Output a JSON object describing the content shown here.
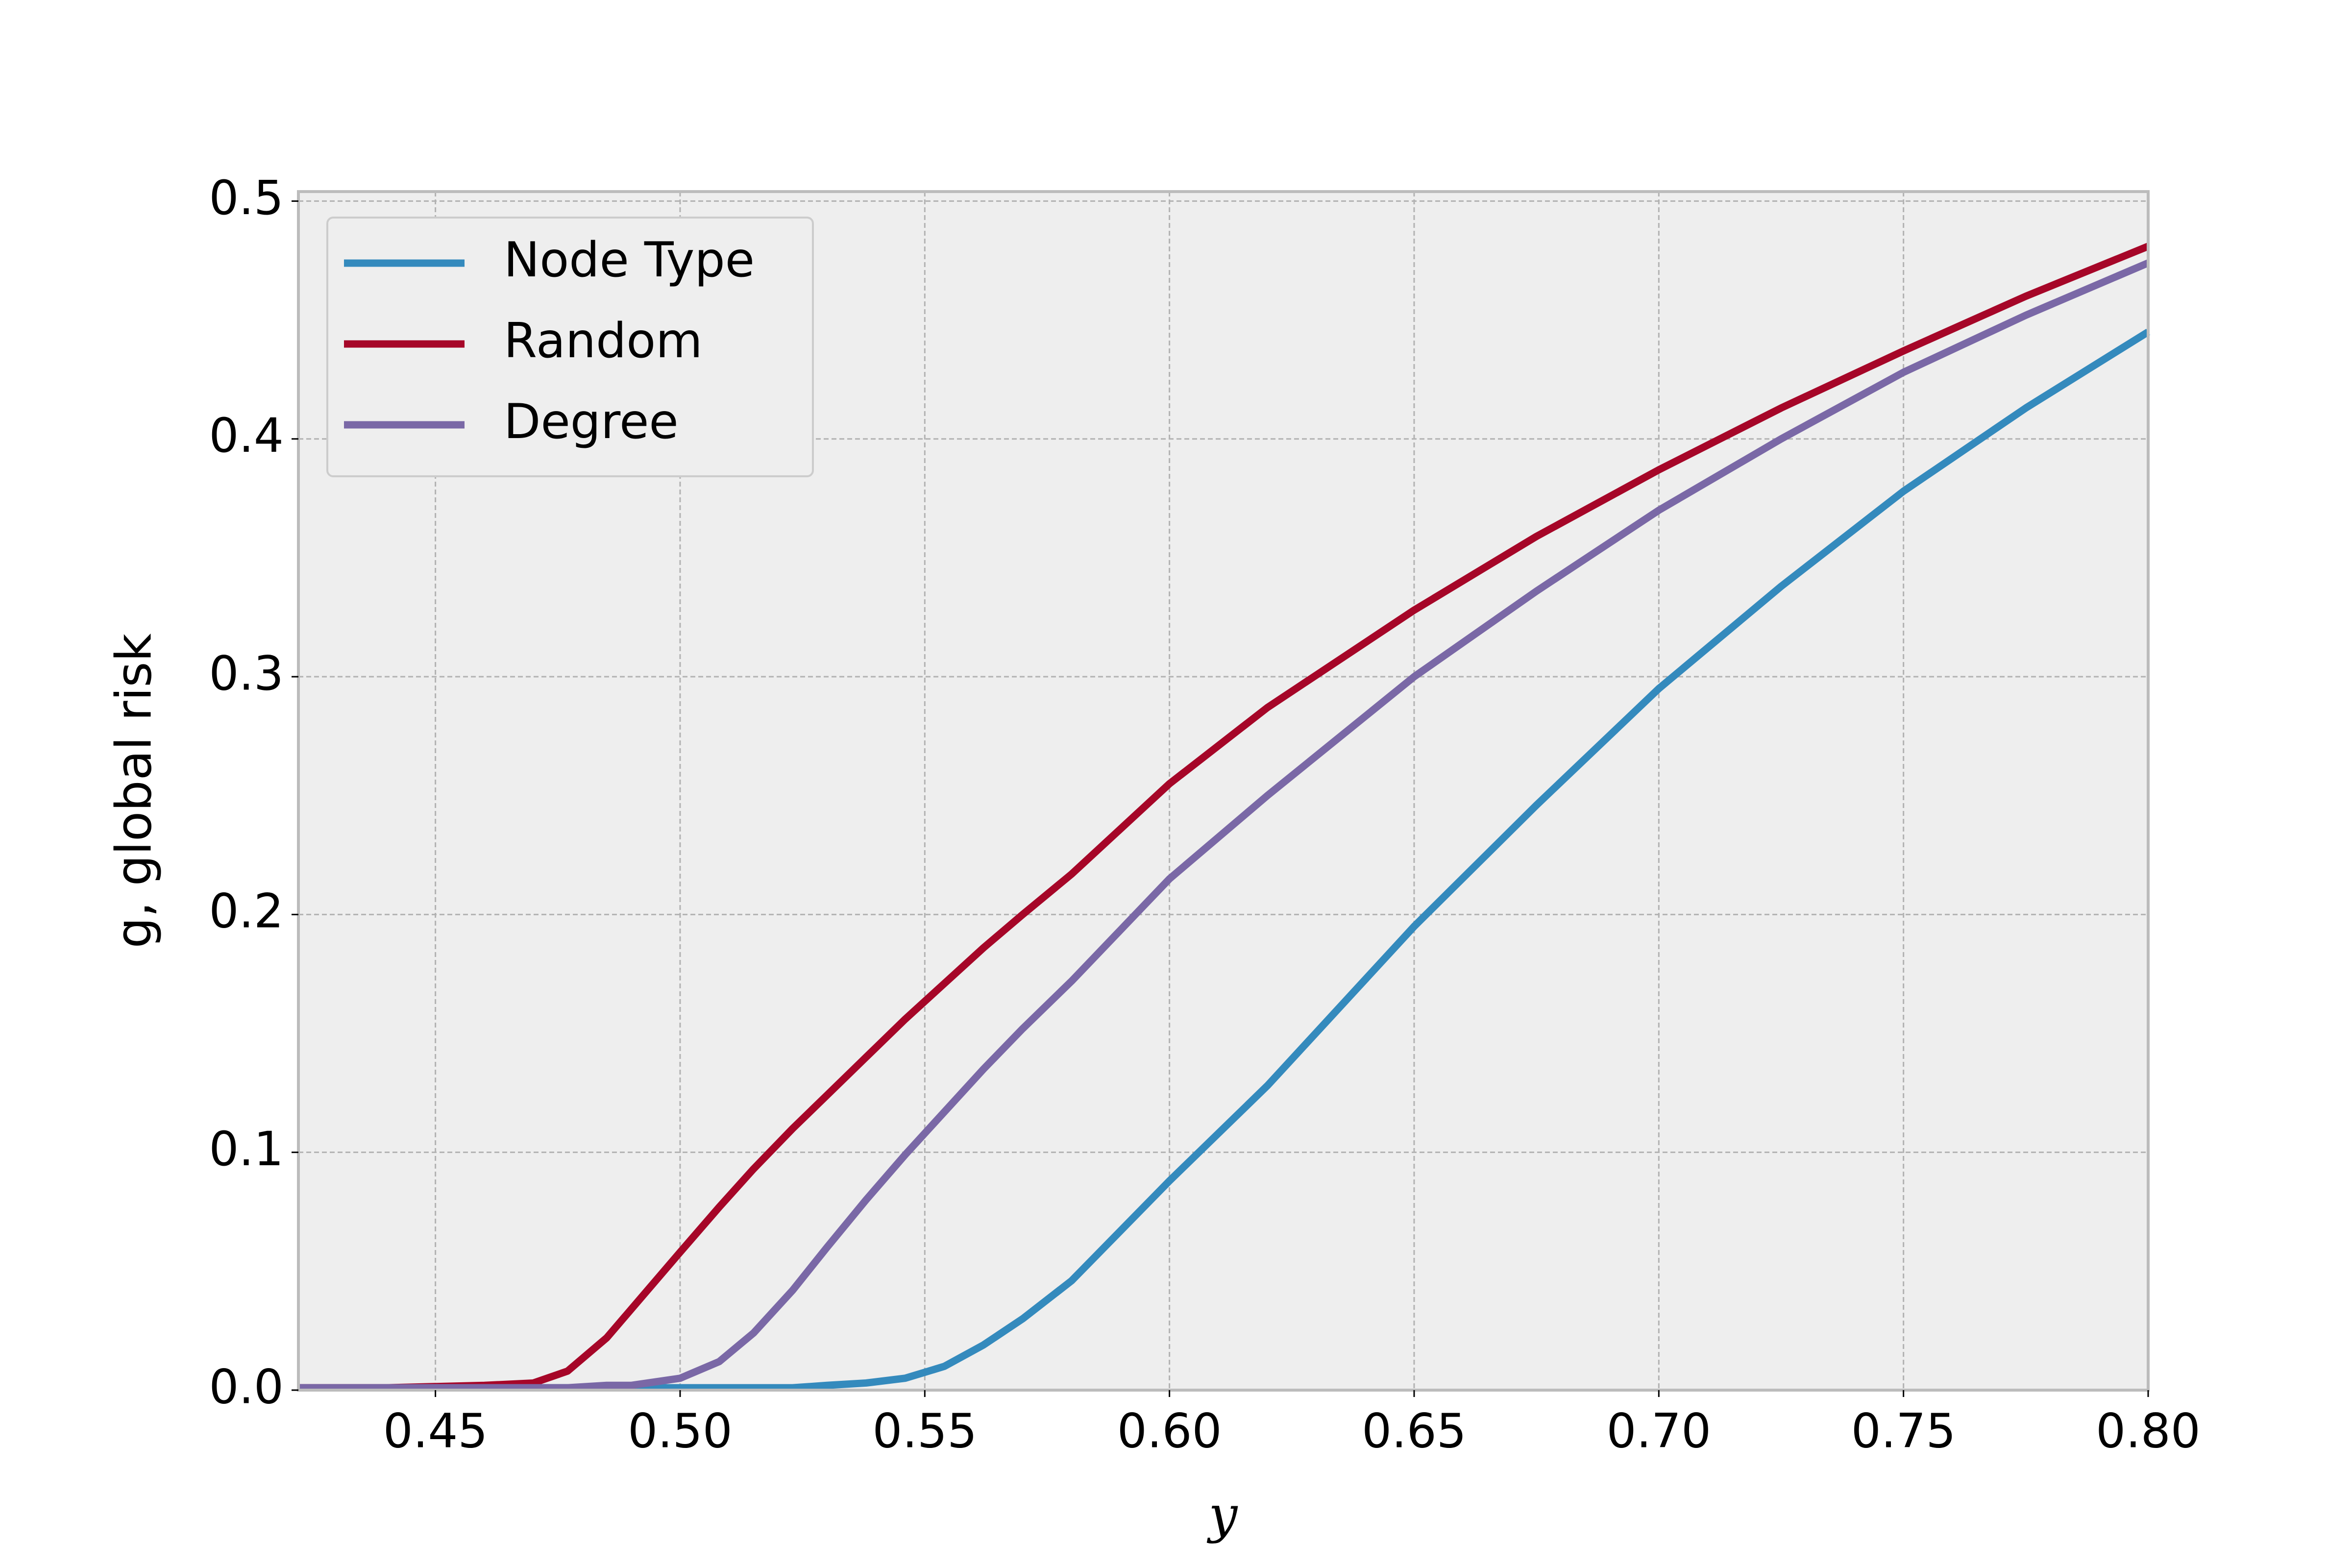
{
  "chart_data": {
    "type": "line",
    "x_label": "y",
    "y_label": "g, global risk",
    "x": [
      0.422,
      0.44,
      0.46,
      0.47,
      0.477,
      0.485,
      0.49,
      0.5,
      0.508,
      0.515,
      0.523,
      0.53,
      0.538,
      0.546,
      0.554,
      0.562,
      0.57,
      0.58,
      0.6,
      0.62,
      0.65,
      0.675,
      0.7,
      0.725,
      0.75,
      0.775,
      0.8
    ],
    "series": [
      {
        "name": "Node Type",
        "color": "#348abd",
        "values": [
          0.001,
          0.001,
          0.001,
          0.001,
          0.001,
          0.001,
          0.001,
          0.001,
          0.001,
          0.001,
          0.001,
          0.002,
          0.003,
          0.005,
          0.01,
          0.019,
          0.03,
          0.046,
          0.088,
          0.128,
          0.195,
          0.246,
          0.295,
          0.338,
          0.378,
          0.413,
          0.445
        ]
      },
      {
        "name": "Random",
        "color": "#a60628",
        "values": [
          0.001,
          0.001,
          0.002,
          0.003,
          0.008,
          0.022,
          0.034,
          0.058,
          0.077,
          0.093,
          0.11,
          0.124,
          0.14,
          0.156,
          0.171,
          0.186,
          0.2,
          0.217,
          0.255,
          0.287,
          0.328,
          0.359,
          0.387,
          0.413,
          0.437,
          0.46,
          0.481
        ]
      },
      {
        "name": "Degree",
        "color": "#7a68a6",
        "values": [
          0.001,
          0.001,
          0.001,
          0.001,
          0.001,
          0.002,
          0.002,
          0.005,
          0.012,
          0.024,
          0.042,
          0.06,
          0.08,
          0.099,
          0.117,
          0.135,
          0.152,
          0.172,
          0.215,
          0.25,
          0.3,
          0.336,
          0.37,
          0.4,
          0.428,
          0.452,
          0.474
        ]
      }
    ],
    "xlim": [
      0.422,
      0.8
    ],
    "ylim": [
      0,
      0.504
    ],
    "xticks": [
      0.45,
      {
        "value": 0.5,
        "label": "0.50"
      },
      0.55,
      {
        "value": 0.6,
        "label": "0.60"
      },
      0.65,
      {
        "value": 0.7,
        "label": "0.70"
      },
      0.75,
      {
        "value": 0.8,
        "label": "0.80"
      }
    ],
    "yticks": [
      {
        "value": 0,
        "label": "0.0"
      },
      0.1,
      0.2,
      0.3,
      0.4,
      0.5
    ],
    "grid": true,
    "legend": "upper left"
  }
}
